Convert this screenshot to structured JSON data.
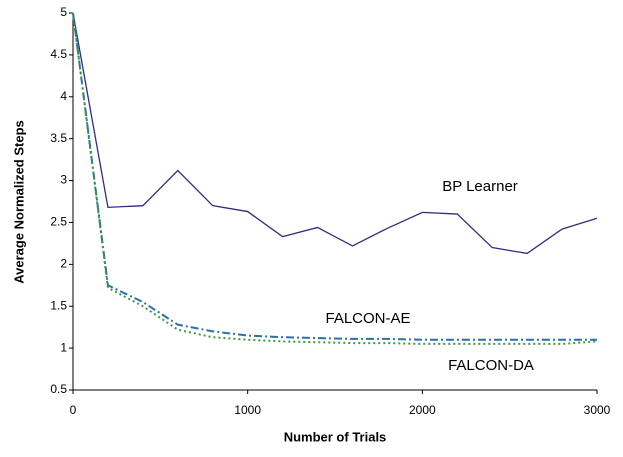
{
  "chart_data": {
    "type": "line",
    "x_label": "Number of Trials",
    "y_label": "Average Normalized Steps",
    "x": [
      0,
      200,
      400,
      600,
      800,
      1000,
      1200,
      1400,
      1600,
      1800,
      2000,
      2200,
      2400,
      2600,
      2800,
      3000
    ],
    "series": [
      {
        "name": "BP Learner",
        "color": "#2e2e80",
        "style": "solid",
        "values": [
          5,
          2.68,
          2.7,
          3.12,
          2.7,
          2.63,
          2.33,
          2.44,
          2.22,
          2.43,
          2.62,
          2.6,
          2.2,
          2.13,
          2.42,
          2.55
        ]
      },
      {
        "name": "FALCON-AE",
        "color": "#2f6fa8",
        "style": "dashdot",
        "values": [
          5,
          1.75,
          1.55,
          1.28,
          1.2,
          1.15,
          1.13,
          1.12,
          1.11,
          1.11,
          1.1,
          1.1,
          1.1,
          1.1,
          1.1,
          1.1
        ]
      },
      {
        "name": "FALCON-DA",
        "color": "#3a9a3a",
        "style": "dotted",
        "values": [
          5,
          1.72,
          1.5,
          1.22,
          1.13,
          1.1,
          1.08,
          1.07,
          1.06,
          1.06,
          1.05,
          1.05,
          1.05,
          1.05,
          1.05,
          1.08
        ]
      }
    ],
    "xlim": [
      0,
      3000
    ],
    "xticks": [
      0,
      1000,
      2000,
      3000
    ],
    "ylim": [
      0.5,
      5
    ],
    "yticks": [
      0.5,
      1,
      1.5,
      2,
      2.5,
      3,
      3.5,
      4,
      4.5,
      5
    ],
    "grid": false
  }
}
